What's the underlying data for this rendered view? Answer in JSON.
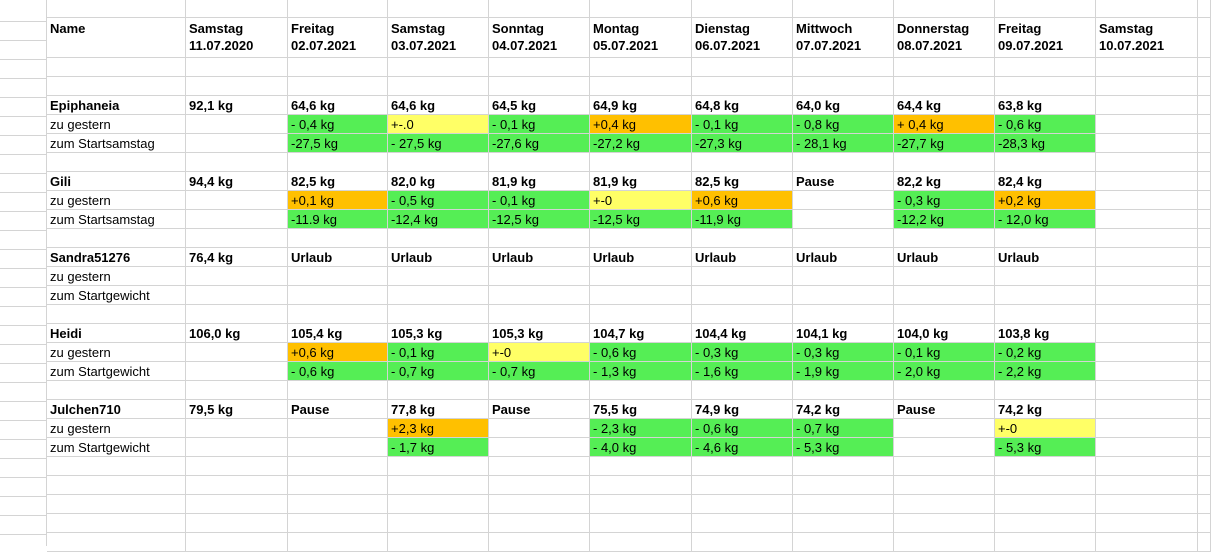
{
  "colors": {
    "green": "#55ee55",
    "yellow": "#ffff66",
    "orange": "#ffc000",
    "gridline": "#d4d4d4"
  },
  "header": {
    "name_label": "Name",
    "columns": [
      {
        "day": "Samstag",
        "date": "11.07.2020"
      },
      {
        "day": "Freitag",
        "date": "02.07.2021"
      },
      {
        "day": "Samstag",
        "date": "03.07.2021"
      },
      {
        "day": "Sonntag",
        "date": "04.07.2021"
      },
      {
        "day": "Montag",
        "date": "05.07.2021"
      },
      {
        "day": "Dienstag",
        "date": "06.07.2021"
      },
      {
        "day": "Mittwoch",
        "date": "07.07.2021"
      },
      {
        "day": "Donnerstag",
        "date": "08.07.2021"
      },
      {
        "day": "Freitag",
        "date": "09.07.2021"
      },
      {
        "day": "Samstag",
        "date": "10.07.2021"
      }
    ]
  },
  "people": [
    {
      "name": "Epiphaneia",
      "weights": [
        "92,1 kg",
        "64,6 kg",
        "64,6 kg",
        "64,5 kg",
        "64,9 kg",
        "64,8 kg",
        "64,0 kg",
        "64,4 kg",
        "63,8 kg",
        ""
      ],
      "row2_label": "zu gestern",
      "row2": [
        {
          "t": "",
          "c": ""
        },
        {
          "t": "- 0,4 kg",
          "c": "green"
        },
        {
          "t": "+-.0",
          "c": "yellow"
        },
        {
          "t": "- 0,1 kg",
          "c": "green"
        },
        {
          "t": "+0,4 kg",
          "c": "orange"
        },
        {
          "t": "- 0,1 kg",
          "c": "green"
        },
        {
          "t": "- 0,8 kg",
          "c": "green"
        },
        {
          "t": "+ 0,4 kg",
          "c": "orange"
        },
        {
          "t": "- 0,6 kg",
          "c": "green"
        },
        {
          "t": "",
          "c": ""
        }
      ],
      "row3_label": "zum Startsamstag",
      "row3": [
        {
          "t": "",
          "c": ""
        },
        {
          "t": "-27,5 kg",
          "c": "green"
        },
        {
          "t": "- 27,5 kg",
          "c": "green"
        },
        {
          "t": "-27,6 kg",
          "c": "green"
        },
        {
          "t": "-27,2 kg",
          "c": "green"
        },
        {
          "t": "-27,3 kg",
          "c": "green"
        },
        {
          "t": "- 28,1 kg",
          "c": "green"
        },
        {
          "t": "-27,7 kg",
          "c": "green"
        },
        {
          "t": "-28,3 kg",
          "c": "green"
        },
        {
          "t": "",
          "c": ""
        }
      ]
    },
    {
      "name": "Gili",
      "weights": [
        "94,4 kg",
        "82,5 kg",
        "82,0 kg",
        "81,9 kg",
        "81,9 kg",
        "82,5 kg",
        "Pause",
        "82,2 kg",
        "82,4 kg",
        ""
      ],
      "row2_label": "zu gestern",
      "row2": [
        {
          "t": "",
          "c": ""
        },
        {
          "t": "+0,1 kg",
          "c": "orange"
        },
        {
          "t": "- 0,5 kg",
          "c": "green"
        },
        {
          "t": "- 0,1 kg",
          "c": "green"
        },
        {
          "t": "+-0",
          "c": "yellow"
        },
        {
          "t": "+0,6 kg",
          "c": "orange"
        },
        {
          "t": "",
          "c": ""
        },
        {
          "t": "- 0,3 kg",
          "c": "green"
        },
        {
          "t": "+0,2 kg",
          "c": "orange"
        },
        {
          "t": "",
          "c": ""
        }
      ],
      "row3_label": "zum Startsamstag",
      "row3": [
        {
          "t": "",
          "c": ""
        },
        {
          "t": "-11.9 kg",
          "c": "green"
        },
        {
          "t": "-12,4 kg",
          "c": "green"
        },
        {
          "t": "-12,5 kg",
          "c": "green"
        },
        {
          "t": "-12,5 kg",
          "c": "green"
        },
        {
          "t": "-11,9 kg",
          "c": "green"
        },
        {
          "t": "",
          "c": ""
        },
        {
          "t": "-12,2 kg",
          "c": "green"
        },
        {
          "t": "- 12,0 kg",
          "c": "green"
        },
        {
          "t": "",
          "c": ""
        }
      ]
    },
    {
      "name": "Sandra51276",
      "weights": [
        "76,4 kg",
        "Urlaub",
        "Urlaub",
        "Urlaub",
        "Urlaub",
        "Urlaub",
        "Urlaub",
        "Urlaub",
        "Urlaub",
        ""
      ],
      "row2_label": "zu gestern",
      "row2": [
        {
          "t": "",
          "c": ""
        },
        {
          "t": "",
          "c": ""
        },
        {
          "t": "",
          "c": ""
        },
        {
          "t": "",
          "c": ""
        },
        {
          "t": "",
          "c": ""
        },
        {
          "t": "",
          "c": ""
        },
        {
          "t": "",
          "c": ""
        },
        {
          "t": "",
          "c": ""
        },
        {
          "t": "",
          "c": ""
        },
        {
          "t": "",
          "c": ""
        }
      ],
      "row3_label": "zum Startgewicht",
      "row3": [
        {
          "t": "",
          "c": ""
        },
        {
          "t": "",
          "c": ""
        },
        {
          "t": "",
          "c": ""
        },
        {
          "t": "",
          "c": ""
        },
        {
          "t": "",
          "c": ""
        },
        {
          "t": "",
          "c": ""
        },
        {
          "t": "",
          "c": ""
        },
        {
          "t": "",
          "c": ""
        },
        {
          "t": "",
          "c": ""
        },
        {
          "t": "",
          "c": ""
        }
      ]
    },
    {
      "name": "Heidi",
      "weights": [
        "106,0 kg",
        "105,4 kg",
        "105,3 kg",
        "105,3 kg",
        "104,7 kg",
        "104,4 kg",
        "104,1 kg",
        "104,0 kg",
        "103,8 kg",
        ""
      ],
      "row2_label": "zu gestern",
      "row2": [
        {
          "t": "",
          "c": ""
        },
        {
          "t": "+0,6 kg",
          "c": "orange"
        },
        {
          "t": "- 0,1 kg",
          "c": "green"
        },
        {
          "t": "+-0",
          "c": "yellow"
        },
        {
          "t": "- 0,6 kg",
          "c": "green"
        },
        {
          "t": "- 0,3 kg",
          "c": "green"
        },
        {
          "t": "- 0,3 kg",
          "c": "green"
        },
        {
          "t": "- 0,1 kg",
          "c": "green"
        },
        {
          "t": "- 0,2 kg",
          "c": "green"
        },
        {
          "t": "",
          "c": ""
        }
      ],
      "row3_label": "zum Startgewicht",
      "row3": [
        {
          "t": "",
          "c": ""
        },
        {
          "t": "- 0,6 kg",
          "c": "green"
        },
        {
          "t": "- 0,7 kg",
          "c": "green"
        },
        {
          "t": "- 0,7 kg",
          "c": "green"
        },
        {
          "t": "- 1,3 kg",
          "c": "green"
        },
        {
          "t": "- 1,6 kg",
          "c": "green"
        },
        {
          "t": "- 1,9 kg",
          "c": "green"
        },
        {
          "t": "- 2,0 kg",
          "c": "green"
        },
        {
          "t": "- 2,2 kg",
          "c": "green"
        },
        {
          "t": "",
          "c": ""
        }
      ]
    },
    {
      "name": "Julchen710",
      "weights": [
        "79,5 kg",
        "Pause",
        "77,8 kg",
        "Pause",
        "75,5 kg",
        "74,9 kg",
        "74,2 kg",
        "Pause",
        "74,2 kg",
        ""
      ],
      "row2_label": "zu gestern",
      "row2": [
        {
          "t": "",
          "c": ""
        },
        {
          "t": "",
          "c": ""
        },
        {
          "t": "+2,3 kg",
          "c": "orange"
        },
        {
          "t": "",
          "c": ""
        },
        {
          "t": "- 2,3 kg",
          "c": "green"
        },
        {
          "t": "- 0,6 kg",
          "c": "green"
        },
        {
          "t": "- 0,7 kg",
          "c": "green"
        },
        {
          "t": "",
          "c": ""
        },
        {
          "t": "+-0",
          "c": "yellow"
        },
        {
          "t": "",
          "c": ""
        }
      ],
      "row3_label": "zum Startgewicht",
      "row3": [
        {
          "t": "",
          "c": ""
        },
        {
          "t": "",
          "c": ""
        },
        {
          "t": "- 1,7 kg",
          "c": "green"
        },
        {
          "t": "",
          "c": ""
        },
        {
          "t": "- 4,0 kg",
          "c": "green"
        },
        {
          "t": "- 4,6 kg",
          "c": "green"
        },
        {
          "t": "- 5,3 kg",
          "c": "green"
        },
        {
          "t": "",
          "c": ""
        },
        {
          "t": "- 5,3 kg",
          "c": "green"
        },
        {
          "t": "",
          "c": ""
        }
      ]
    }
  ]
}
